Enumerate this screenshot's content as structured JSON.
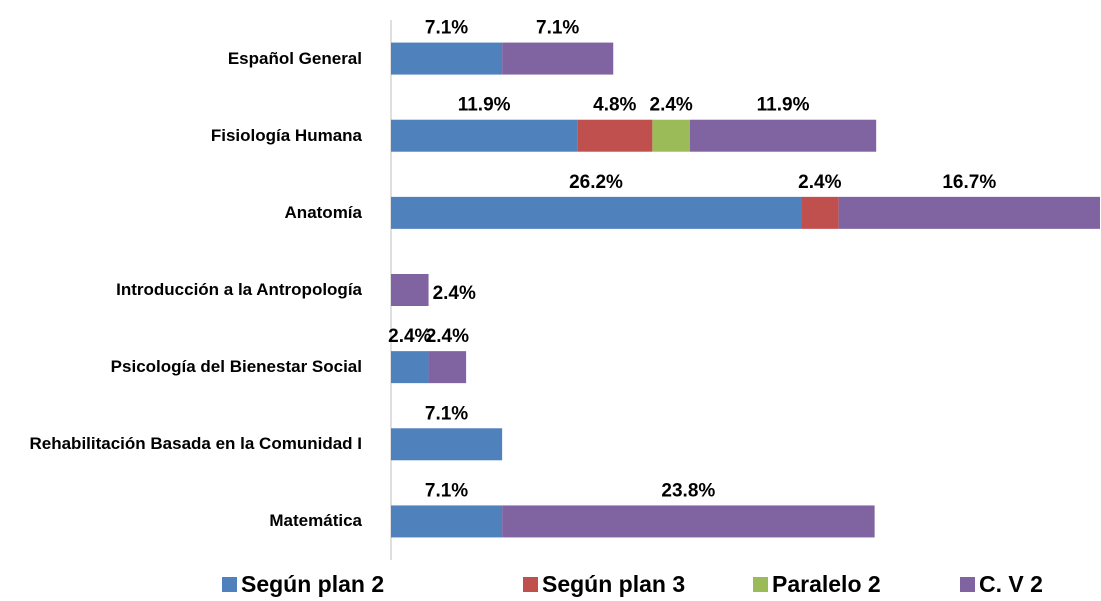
{
  "chart_data": {
    "type": "stacked-barh",
    "categories": [
      "Español General",
      "Fisiología Humana",
      "Anatomía",
      "Introducción a la Antropología",
      "Psicología del Bienestar Social",
      "Rehabilitación Basada en la Comunidad I",
      "Matemática"
    ],
    "series": [
      {
        "name": "Según plan 2",
        "color": "#4f81bd",
        "values": [
          7.1,
          11.9,
          26.2,
          null,
          2.4,
          7.1,
          7.1
        ],
        "value_labels": [
          "7.1%",
          "11.9%",
          "26.2%",
          null,
          "2.4%",
          "7.1%",
          "7.1%"
        ]
      },
      {
        "name": "Según plan 3",
        "color": "#c0504d",
        "values": [
          null,
          4.8,
          2.4,
          null,
          null,
          null,
          null
        ],
        "value_labels": [
          null,
          "4.8%",
          "2.4%",
          null,
          null,
          null,
          null
        ]
      },
      {
        "name": "Paralelo 2",
        "color": "#9bbb59",
        "values": [
          null,
          2.4,
          null,
          null,
          null,
          null,
          null
        ],
        "value_labels": [
          null,
          "2.4%",
          null,
          null,
          null,
          null,
          null
        ]
      },
      {
        "name": "C. V 2",
        "color": "#8064a2",
        "values": [
          7.1,
          11.9,
          16.7,
          2.4,
          2.4,
          null,
          23.8
        ],
        "value_labels": [
          "7.1%",
          "11.9%",
          "16.7%",
          "2.4%",
          "2.4%",
          null,
          "23.8%"
        ]
      }
    ],
    "legend": "bottom"
  }
}
